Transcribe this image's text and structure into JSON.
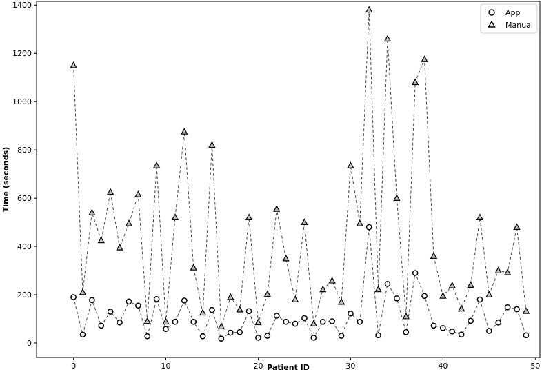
{
  "chart_data": {
    "type": "line",
    "title": "",
    "xlabel": "Patient ID",
    "ylabel": "Time (seconds)",
    "xlim": [
      -4,
      50.5
    ],
    "ylim": [
      -60,
      1415
    ],
    "xticks": [
      0,
      10,
      20,
      30,
      40,
      50
    ],
    "yticks": [
      0,
      200,
      400,
      600,
      800,
      1000,
      1200,
      1400
    ],
    "grid": false,
    "legend_position": "top-right",
    "x": [
      0,
      1,
      2,
      3,
      4,
      5,
      6,
      7,
      8,
      9,
      10,
      11,
      12,
      13,
      14,
      15,
      16,
      17,
      18,
      19,
      20,
      21,
      22,
      23,
      24,
      25,
      26,
      27,
      28,
      29,
      30,
      31,
      32,
      33,
      34,
      35,
      36,
      37,
      38,
      39,
      40,
      41,
      42,
      43,
      44,
      45,
      46,
      47,
      48,
      49
    ],
    "series": [
      {
        "name": "App",
        "marker": "circle",
        "line_style": "dashed",
        "color": "#444444",
        "values": [
          190,
          35,
          178,
          72,
          130,
          85,
          172,
          155,
          28,
          182,
          58,
          88,
          176,
          88,
          28,
          137,
          18,
          43,
          45,
          132,
          22,
          30,
          113,
          88,
          80,
          103,
          22,
          88,
          90,
          30,
          122,
          88,
          480,
          32,
          245,
          185,
          45,
          290,
          195,
          72,
          62,
          48,
          35,
          92,
          180,
          50,
          85,
          148,
          140,
          32
        ]
      },
      {
        "name": "Manual",
        "marker": "triangle",
        "line_style": "dashed",
        "color": "#444444",
        "values": [
          1150,
          210,
          540,
          425,
          625,
          395,
          495,
          615,
          90,
          735,
          88,
          520,
          875,
          312,
          125,
          820,
          68,
          190,
          138,
          520,
          85,
          202,
          555,
          350,
          180,
          500,
          80,
          222,
          258,
          170,
          735,
          495,
          1380,
          222,
          1260,
          600,
          110,
          1080,
          1175,
          360,
          195,
          238,
          142,
          240,
          520,
          200,
          300,
          292,
          480,
          132
        ]
      }
    ]
  }
}
